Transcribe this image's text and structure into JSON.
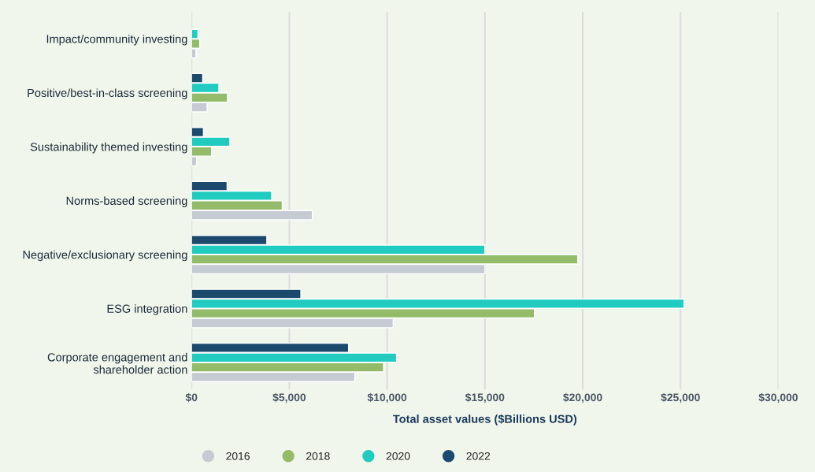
{
  "chart_data": {
    "type": "bar",
    "orientation": "horizontal",
    "xlabel": "Total asset values ($Billions USD)",
    "categories": [
      "Impact/community investing",
      "Positive/best-in-class screening",
      "Sustainability themed investing",
      "Norms-based screening",
      "Negative/exclusionary screening",
      "ESG integration",
      "Corporate engagement and\nshareholder action"
    ],
    "series": [
      {
        "name": "2016",
        "color": "#c5cad3",
        "values": [
          230,
          800,
          260,
          6180,
          15000,
          10310,
          8350
        ]
      },
      {
        "name": "2018",
        "color": "#94bb6a",
        "values": [
          420,
          1840,
          1030,
          4640,
          19750,
          17530,
          9820
        ]
      },
      {
        "name": "2020",
        "color": "#22cbbf",
        "values": [
          330,
          1400,
          1960,
          4100,
          15000,
          25180,
          10480
        ]
      },
      {
        "name": "2022",
        "color": "#1b4a6e",
        "values": [
          null,
          570,
          610,
          1820,
          3850,
          5590,
          8030
        ]
      }
    ],
    "xlim": [
      0,
      30000
    ],
    "xticks": [
      {
        "value": 0,
        "label": "$0"
      },
      {
        "value": 5000,
        "label": "$5,000"
      },
      {
        "value": 10000,
        "label": "$10,000"
      },
      {
        "value": 15000,
        "label": "$15,000"
      },
      {
        "value": 20000,
        "label": "$20,000"
      },
      {
        "value": 25000,
        "label": "$25,000"
      },
      {
        "value": 30000,
        "label": "$30,000"
      }
    ],
    "grid": "x",
    "legend": "bottom left",
    "marker": "circle"
  }
}
